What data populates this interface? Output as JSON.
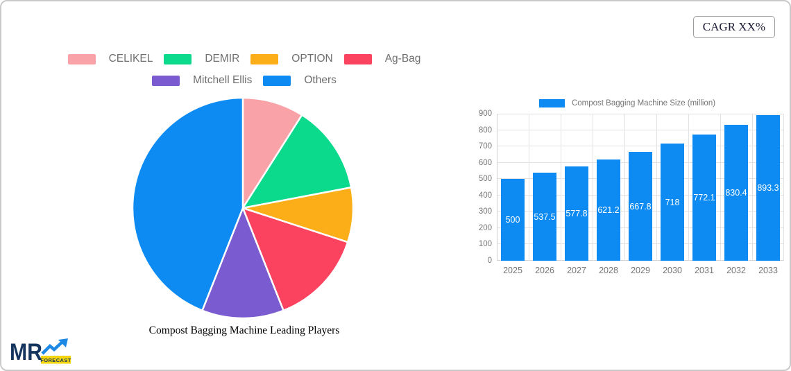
{
  "cagr": {
    "label": "CAGR XX%"
  },
  "logo": {
    "brand": "MR",
    "badge": "FORECAST"
  },
  "colors": {
    "accent_blue": "#0D8BF2",
    "navy": "#15355F",
    "badge_yellow": "#F6D60A",
    "legend_text": "#6E6E6E",
    "axis_text": "#757575",
    "grid_line": "#E2E2E2"
  },
  "legend_layout": {
    "rows": [
      4,
      2
    ]
  },
  "chart_data": [
    {
      "type": "pie",
      "title": "Compost Bagging Machine Leading Players",
      "legend_position": "top",
      "values_note": "percent of circle, estimated from slice angles",
      "slices": [
        {
          "label": "CELIKEL",
          "value": 9,
          "color": "#F9A3A8"
        },
        {
          "label": "DEMIR",
          "value": 13,
          "color": "#0BD98C"
        },
        {
          "label": "OPTION",
          "value": 8,
          "color": "#FBAE17"
        },
        {
          "label": "Ag-Bag",
          "value": 14,
          "color": "#FB4360"
        },
        {
          "label": "Mitchell Ellis",
          "value": 12,
          "color": "#7A5BD0"
        },
        {
          "label": "Others",
          "value": 44,
          "color": "#0D8BF2"
        }
      ]
    },
    {
      "type": "bar",
      "legend": "Compost Bagging Machine Size (million)",
      "categories": [
        "2025",
        "2026",
        "2027",
        "2028",
        "2029",
        "2030",
        "2031",
        "2032",
        "2033"
      ],
      "values": [
        500,
        537.5,
        577.8,
        621.2,
        667.8,
        718,
        772.1,
        830.4,
        893.3
      ],
      "bar_color": "#0D8BF2",
      "ylim": [
        0,
        900
      ],
      "yticks": [
        0,
        100,
        200,
        300,
        400,
        500,
        600,
        700,
        800,
        900
      ],
      "grid": true,
      "value_labels": "inside middle, white"
    }
  ]
}
